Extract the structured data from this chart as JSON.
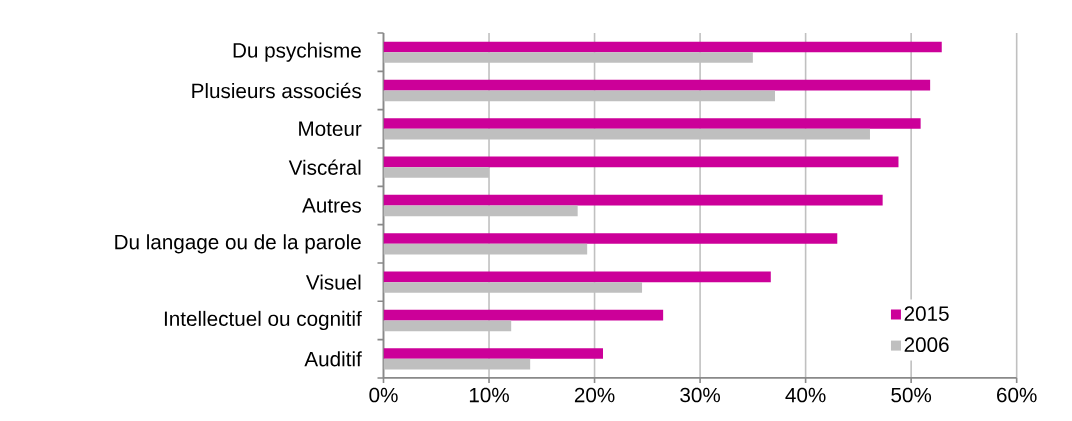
{
  "chart_data": {
    "type": "bar",
    "orientation": "horizontal",
    "categories": [
      "Du psychisme",
      "Plusieurs associés",
      "Moteur",
      "Viscéral",
      "Autres",
      "Du langage ou de la parole",
      "Visuel",
      "Intellectuel ou cognitif",
      "Auditif"
    ],
    "series": [
      {
        "name": "2015",
        "color": "#cc0099",
        "values": [
          52.9,
          51.8,
          50.9,
          48.8,
          47.3,
          43.0,
          36.7,
          26.5,
          20.8
        ]
      },
      {
        "name": "2006",
        "color": "#bfbfbf",
        "values": [
          35.0,
          37.1,
          46.1,
          10.0,
          18.4,
          19.3,
          24.5,
          12.1,
          13.9
        ]
      }
    ],
    "xlim": [
      0,
      60
    ],
    "xticks": [
      {
        "value": 0,
        "label": "0%"
      },
      {
        "value": 10,
        "label": "10%"
      },
      {
        "value": 20,
        "label": "20%"
      },
      {
        "value": 30,
        "label": "30%"
      },
      {
        "value": 40,
        "label": "40%"
      },
      {
        "value": 50,
        "label": "50%"
      },
      {
        "value": 60,
        "label": "60%"
      }
    ],
    "grid": "x",
    "legend": "bottom right"
  }
}
